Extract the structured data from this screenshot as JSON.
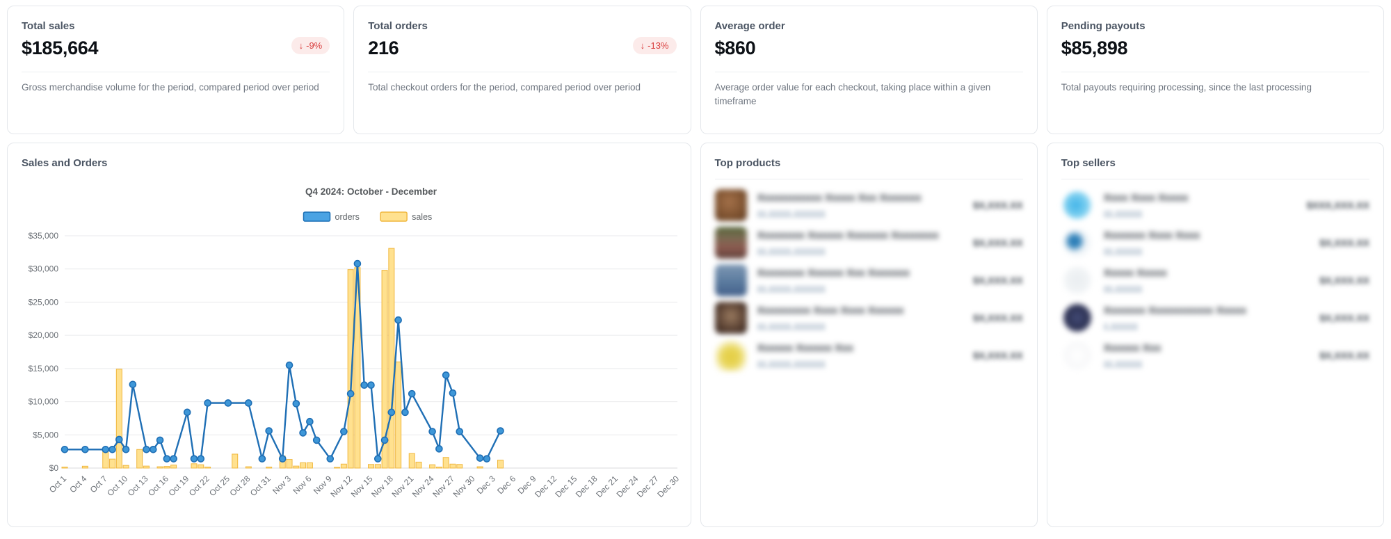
{
  "stats": [
    {
      "label": "Total sales",
      "value": "$185,664",
      "change_arrow": "↓",
      "change": "-9%",
      "description": "Gross merchandise volume for the period, compared period over period"
    },
    {
      "label": "Total orders",
      "value": "216",
      "change_arrow": "↓",
      "change": "-13%",
      "description": "Total checkout orders for the period, compared period over period"
    },
    {
      "label": "Average order",
      "value": "$860",
      "description": "Average order value for each checkout, taking place within a given timeframe"
    },
    {
      "label": "Pending payouts",
      "value": "$85,898",
      "description": "Total payouts requiring processing, since the last processing"
    }
  ],
  "panels": {
    "chart_title": "Sales and Orders",
    "products_title": "Top products",
    "sellers_title": "Top sellers"
  },
  "chart_data": {
    "type": "line+bar",
    "title": "Q4 2024: October - December",
    "legend": [
      {
        "label": "orders",
        "fill": "#4ba3e3",
        "border": "#1b6fb5"
      },
      {
        "label": "sales",
        "fill": "#ffe18f",
        "border": "#f0b73e"
      }
    ],
    "ylim": [
      0,
      35000
    ],
    "y_tick_step": 5000,
    "y_tick_labels": [
      "$0",
      "$5,000",
      "$10,000",
      "$15,000",
      "$20,000",
      "$25,000",
      "$30,000",
      "$35,000"
    ],
    "x_range_days": [
      0,
      90
    ],
    "x_tick_every_days": 3,
    "x_tick_labels": [
      "Oct 1",
      "Oct 4",
      "Oct 7",
      "Oct 10",
      "Oct 13",
      "Oct 16",
      "Oct 19",
      "Oct 22",
      "Oct 25",
      "Oct 28",
      "Oct 31",
      "Nov 3",
      "Nov 6",
      "Nov 9",
      "Nov 12",
      "Nov 15",
      "Nov 18",
      "Nov 21",
      "Nov 24",
      "Nov 27",
      "Nov 30",
      "Dec 3",
      "Dec 6",
      "Dec 9",
      "Dec 12",
      "Dec 15",
      "Dec 18",
      "Dec 21",
      "Dec 24",
      "Dec 27",
      "Dec 30"
    ],
    "grid": true,
    "legend_position": "top-center",
    "series": [
      {
        "name": "orders",
        "type": "line",
        "color": "#1f6fb5",
        "marker_fill": "#3e97d8",
        "points": [
          [
            0,
            2800
          ],
          [
            3,
            2800
          ],
          [
            6,
            2800
          ],
          [
            7,
            2800
          ],
          [
            8,
            4300
          ],
          [
            9,
            2800
          ],
          [
            10,
            12600
          ],
          [
            12,
            2800
          ],
          [
            13,
            2800
          ],
          [
            14,
            4200
          ],
          [
            15,
            1400
          ],
          [
            16,
            1400
          ],
          [
            18,
            8400
          ],
          [
            19,
            1400
          ],
          [
            20,
            1400
          ],
          [
            21,
            9800
          ],
          [
            24,
            9800
          ],
          [
            27,
            9800
          ],
          [
            29,
            1400
          ],
          [
            30,
            5600
          ],
          [
            32,
            1400
          ],
          [
            33,
            15500
          ],
          [
            34,
            9700
          ],
          [
            35,
            5300
          ],
          [
            36,
            7000
          ],
          [
            37,
            4200
          ],
          [
            39,
            1400
          ],
          [
            41,
            5500
          ],
          [
            42,
            11200
          ],
          [
            43,
            30800
          ],
          [
            44,
            12500
          ],
          [
            45,
            12500
          ],
          [
            46,
            1400
          ],
          [
            47,
            4200
          ],
          [
            48,
            8400
          ],
          [
            49,
            22300
          ],
          [
            50,
            8400
          ],
          [
            51,
            11200
          ],
          [
            54,
            5500
          ],
          [
            55,
            2900
          ],
          [
            56,
            14000
          ],
          [
            57,
            11300
          ],
          [
            58,
            5500
          ],
          [
            61,
            1500
          ],
          [
            62,
            1400
          ],
          [
            64,
            5600
          ]
        ]
      },
      {
        "name": "sales",
        "type": "bar",
        "fill": "#ffe18f",
        "border": "#f0b73e",
        "points": [
          [
            0,
            150
          ],
          [
            3,
            280
          ],
          [
            6,
            2700
          ],
          [
            7,
            1350
          ],
          [
            8,
            14900
          ],
          [
            9,
            400
          ],
          [
            11,
            2800
          ],
          [
            12,
            300
          ],
          [
            14,
            200
          ],
          [
            15,
            250
          ],
          [
            16,
            450
          ],
          [
            19,
            650
          ],
          [
            20,
            500
          ],
          [
            21,
            150
          ],
          [
            25,
            2100
          ],
          [
            27,
            200
          ],
          [
            30,
            150
          ],
          [
            32,
            1800
          ],
          [
            33,
            1300
          ],
          [
            34,
            300
          ],
          [
            35,
            800
          ],
          [
            36,
            800
          ],
          [
            40,
            100
          ],
          [
            41,
            600
          ],
          [
            42,
            29900
          ],
          [
            43,
            30200
          ],
          [
            45,
            550
          ],
          [
            46,
            550
          ],
          [
            47,
            29800
          ],
          [
            48,
            33100
          ],
          [
            49,
            16000
          ],
          [
            51,
            2200
          ],
          [
            52,
            900
          ],
          [
            54,
            500
          ],
          [
            55,
            150
          ],
          [
            56,
            1600
          ],
          [
            57,
            600
          ],
          [
            58,
            550
          ],
          [
            61,
            200
          ],
          [
            64,
            1200
          ]
        ]
      }
    ]
  },
  "top_products": {
    "items": [
      {
        "redacted": true,
        "name_placeholder": "Xxxxxxxxxxx Xxxxx Xxx Xxxxxxx",
        "subtitle_placeholder": "xx xxxxx xxxxxxx",
        "amount_placeholder": "$X,XXX.XX",
        "thumb_bg": "radial-gradient(circle at 45% 40%, #a4714a 0%, #7c512f 60%, #5f3d23 100%)"
      },
      {
        "redacted": true,
        "name_placeholder": "Xxxxxxxx Xxxxxx Xxxxxxx Xxxxxxxx",
        "subtitle_placeholder": "xx xxxxx xxxxxxx",
        "amount_placeholder": "$X,XXX.XX",
        "thumb_bg": "linear-gradient(180deg,#57663a 0%,#7b6a52 35%,#8c5a50 65%,#5d3f38 100%)"
      },
      {
        "redacted": true,
        "name_placeholder": "Xxxxxxxx Xxxxxx Xxx Xxxxxxx",
        "subtitle_placeholder": "xx xxxxx xxxxxxx",
        "amount_placeholder": "$X,XXX.XX",
        "thumb_bg": "linear-gradient(180deg,#7f98b4 0%,#5d7da0 50%,#43608a 100%)"
      },
      {
        "redacted": true,
        "name_placeholder": "Xxxxxxxxx Xxxx Xxxx Xxxxxx",
        "subtitle_placeholder": "xx xxxxx xxxxxxx",
        "amount_placeholder": "$X,XXX.XX",
        "thumb_bg": "radial-gradient(circle at 50% 45%, #9a7b60 0%, #5d4435 55%, #362620 100%)"
      },
      {
        "redacted": true,
        "name_placeholder": "Xxxxxx Xxxxxx Xxx",
        "subtitle_placeholder": "xx xxxxx xxxxxxx",
        "amount_placeholder": "$X,XXX.XX",
        "thumb_bg": "radial-gradient(circle at 50% 55%, #e3cc3f 0%, #e9d75e 40%, #ffffff 78%)"
      }
    ]
  },
  "top_sellers": {
    "items": [
      {
        "redacted": true,
        "name_placeholder": "Xxxx Xxxx Xxxxx",
        "subtitle_placeholder": "xx xxxxxx",
        "amount_placeholder": "$XXX,XXX.XX",
        "thumb_bg": "radial-gradient(circle at 45% 50%, #3fb3e8 0%, #7fd0f0 55%, #e8f6fc 100%)"
      },
      {
        "redacted": true,
        "name_placeholder": "Xxxxxxx Xxxx Xxxx",
        "subtitle_placeholder": "xx xxxxxx",
        "amount_placeholder": "$X,XXX.XX",
        "thumb_bg": "radial-gradient(circle at 40% 45%, #2c7fb8 0%, #2c7fb8 22%, #f2f6f9 48%)"
      },
      {
        "redacted": true,
        "name_placeholder": "Xxxxx Xxxxx",
        "subtitle_placeholder": "xx xxxxxx",
        "amount_placeholder": "$X,XXX.XX",
        "thumb_bg": "radial-gradient(circle at 50% 50%, #e9edf0 0%, #f7f9fa 100%)"
      },
      {
        "redacted": true,
        "name_placeholder": "Xxxxxxx Xxxxxxxxxxx Xxxxx",
        "subtitle_placeholder": "x xxxxxx",
        "amount_placeholder": "$X,XXX.XX",
        "thumb_bg": "radial-gradient(circle at 50% 50%, #434b77 0%, #2e3354 55%, #565b83 100%)"
      },
      {
        "redacted": true,
        "name_placeholder": "Xxxxxx Xxx",
        "subtitle_placeholder": "xx xxxxxx",
        "amount_placeholder": "$X,XXX.XX",
        "thumb_bg": "radial-gradient(circle at 50% 50%, #ffffff 0%, #f3f4f6 100%)"
      }
    ]
  }
}
